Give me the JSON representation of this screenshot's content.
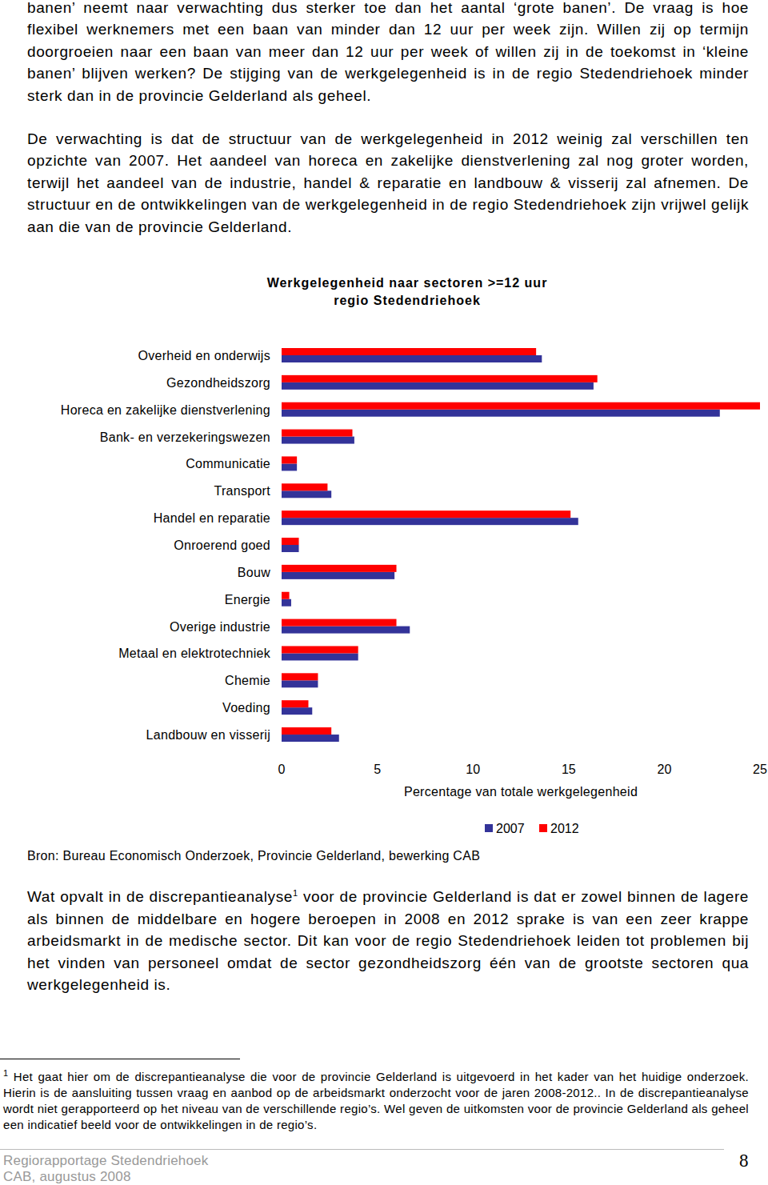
{
  "body": [
    "banen’ neemt naar verwachting dus sterker toe dan het aantal ‘grote banen’. De vraag is hoe flexibel werknemers met een baan van minder dan 12 uur per week zijn. Willen zij op termijn doorgroeien naar een baan van meer dan 12 uur per week of willen zij in de toekomst in ‘kleine banen’ blijven werken? De stijging van de werkgelegenheid is in de regio Stedendriehoek minder sterk dan in de provincie Gelderland als geheel.",
    "De verwachting is dat de structuur van de werkgelegenheid in 2012 weinig zal verschillen ten opzichte van 2007. Het aandeel van horeca en zakelijke dienstverlening zal nog groter worden, terwijl het aandeel van de industrie, handel & reparatie en landbouw & visserij zal afnemen. De structuur en de ontwikkelingen van de werkgelegenheid in de regio Stedendriehoek zijn vrijwel gelijk aan die van de provincie Gelderland."
  ],
  "chart_data": {
    "type": "bar",
    "orientation": "horizontal",
    "title": "Werkgelegenheid naar sectoren >=12 uur",
    "subtitle": "regio Stedendriehoek",
    "xlabel": "Percentage van totale werkgelegenheid",
    "categories": [
      "Overheid en onderwijs",
      "Gezondheidszorg",
      "Horeca en zakelijke dienstverlening",
      "Bank- en verzekeringswezen",
      "Communicatie",
      "Transport",
      "Handel en reparatie",
      "Onroerend goed",
      "Bouw",
      "Energie",
      "Overige industrie",
      "Metaal en elektrotechniek",
      "Chemie",
      "Voeding",
      "Landbouw en visserij"
    ],
    "series": [
      {
        "name": "2007",
        "color": "#333399",
        "values": [
          13.6,
          16.3,
          22.9,
          3.8,
          0.8,
          2.6,
          15.5,
          0.9,
          5.9,
          0.5,
          6.7,
          4.0,
          1.9,
          1.6,
          3.0
        ]
      },
      {
        "name": "2012",
        "color": "#ff0000",
        "values": [
          13.3,
          16.5,
          25.0,
          3.7,
          0.8,
          2.4,
          15.1,
          0.9,
          6.0,
          0.4,
          6.0,
          4.0,
          1.9,
          1.4,
          2.6
        ]
      }
    ],
    "xlim": [
      0,
      25
    ],
    "xticks": [
      0,
      5,
      10,
      15,
      20,
      25
    ],
    "grid": false,
    "legend": "bottom",
    "source": "Bron: Bureau Economisch Onderzoek, Provincie Gelderland, bewerking CAB"
  },
  "note": {
    "text_before": "Wat opvalt in de discrepantieanalyse",
    "footnote_ref": "1",
    "text_after": "voor de provincie Gelderland is dat er zowel binnen de lagere als binnen de middelbare en hogere beroepen in 2008 en 2012 sprake is van een zeer krappe arbeidsmarkt in de medische sector. Dit kan voor de regio Stedendriehoek leiden tot problemen bij het vinden van personeel omdat de sector gezondheidszorg één van de grootste sectoren qua werkgelegenheid is."
  },
  "footnote": {
    "marker": "1",
    "text": "Het gaat hier om de discrepantieanalyse die voor de provincie Gelderland is uitgevoerd in het kader van het huidige onderzoek. Hierin is de aansluiting tussen vraag en aanbod op de arbeidsmarkt onderzocht voor de jaren 2008-2012.. In de discrepantieanalyse wordt niet gerapporteerd op het niveau van de verschillende regio’s. Wel geven de uitkomsten voor de provincie Gelderland als geheel een indicatief beeld voor de ontwikkelingen in de regio’s."
  },
  "footer": {
    "title": "Regiorapportage Stedendriehoek",
    "date": "CAB, augustus 2008",
    "page": "8"
  }
}
